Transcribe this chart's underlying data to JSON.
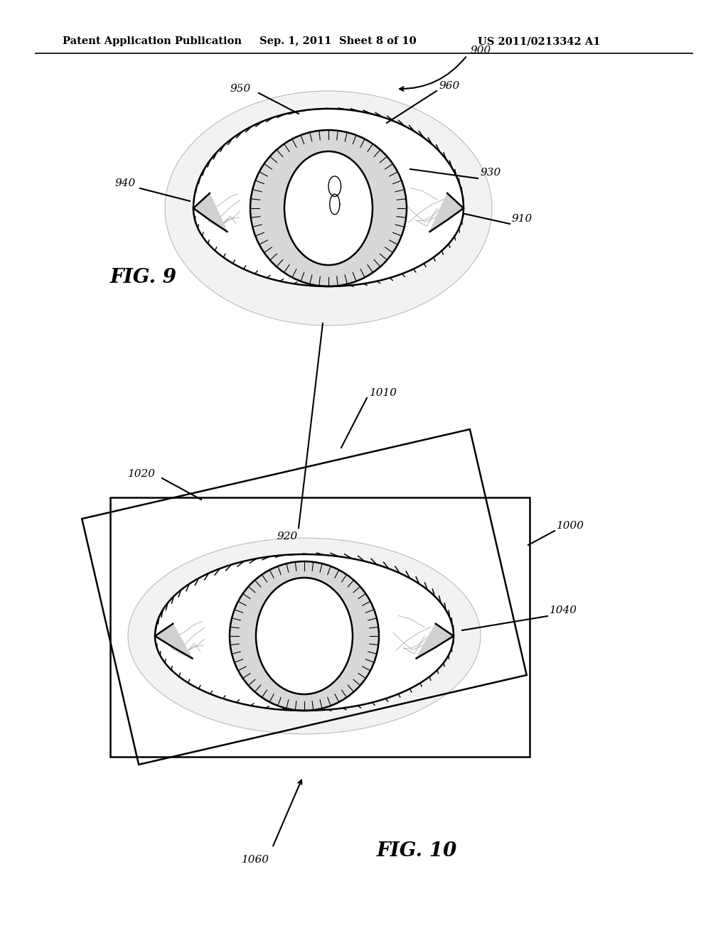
{
  "background_color": "#ffffff",
  "header_text": "Patent Application Publication",
  "header_date": "Sep. 1, 2011",
  "header_sheet": "Sheet 8 of 10",
  "header_patent": "US 2011/0213342 A1",
  "fig9_label": "FIG. 9",
  "fig10_label": "FIG. 10",
  "line_color": "#000000",
  "gray_color": "#aaaaaa",
  "light_gray": "#cccccc",
  "sclera_color": "#f0f0f0",
  "iris_color": "#e0e0e0",
  "white": "#ffffff"
}
